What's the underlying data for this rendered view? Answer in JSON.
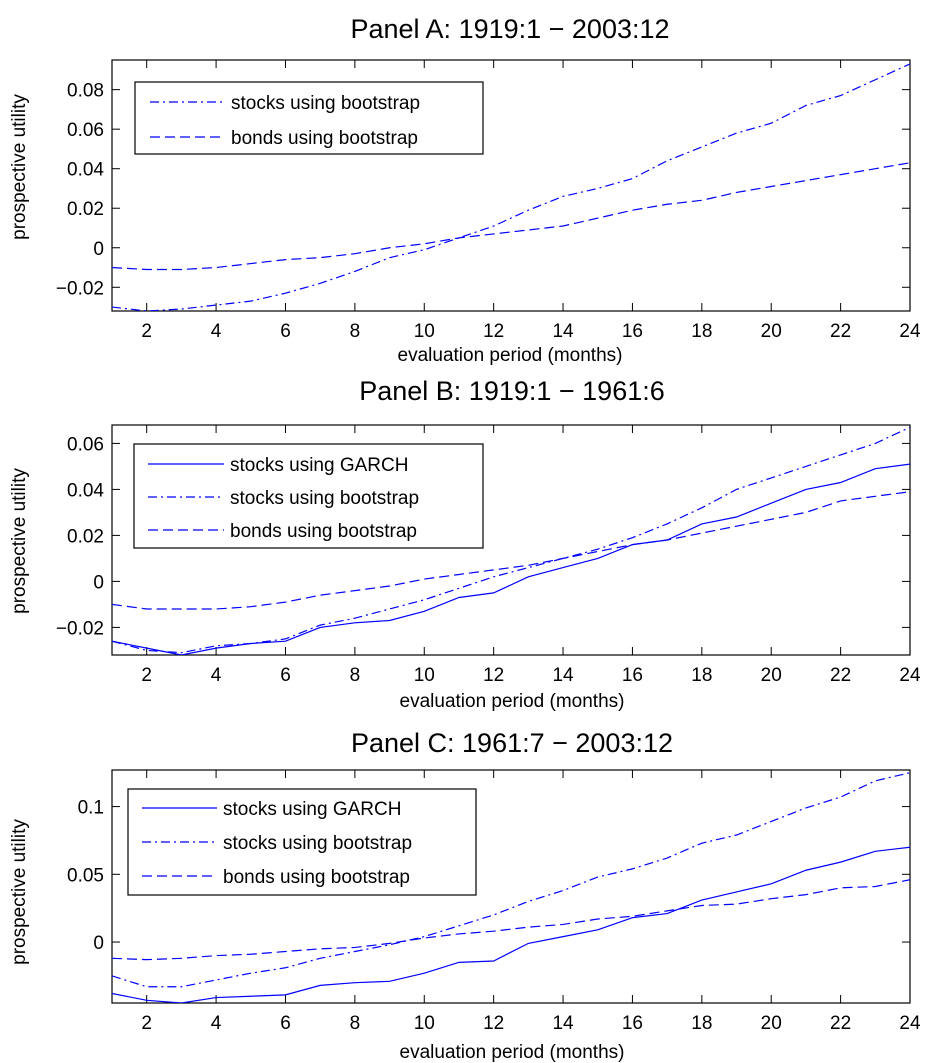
{
  "chart_data": [
    {
      "type": "line",
      "title": "Panel A: 1919:1 − 2003:12",
      "xlabel": "evaluation period (months)",
      "ylabel": "prospective utility",
      "xlim": [
        1,
        24
      ],
      "ylim": [
        -0.032,
        0.095
      ],
      "xticks": [
        2,
        4,
        6,
        8,
        10,
        12,
        14,
        16,
        18,
        20,
        22,
        24
      ],
      "yticks": [
        -0.02,
        0,
        0.02,
        0.04,
        0.06,
        0.08
      ],
      "ytick_labels": [
        "−0.02",
        "0",
        "0.02",
        "0.04",
        "0.06",
        "0.08"
      ],
      "grid": false,
      "legend_position": "top-left",
      "x": [
        1,
        2,
        3,
        4,
        5,
        6,
        7,
        8,
        9,
        10,
        11,
        12,
        13,
        14,
        15,
        16,
        17,
        18,
        19,
        20,
        21,
        22,
        23,
        24
      ],
      "series": [
        {
          "name": "stocks using bootstrap",
          "style": "dashdot",
          "color": "#0000ff",
          "values": [
            -0.03,
            -0.032,
            -0.031,
            -0.029,
            -0.027,
            -0.023,
            -0.018,
            -0.012,
            -0.005,
            -0.001,
            0.005,
            0.011,
            0.019,
            0.026,
            0.03,
            0.035,
            0.044,
            0.051,
            0.058,
            0.063,
            0.072,
            0.077,
            0.085,
            0.093
          ]
        },
        {
          "name": "bonds using bootstrap",
          "style": "dashed",
          "color": "#0000ff",
          "values": [
            -0.01,
            -0.011,
            -0.011,
            -0.01,
            -0.008,
            -0.006,
            -0.005,
            -0.003,
            0.0,
            0.002,
            0.005,
            0.007,
            0.009,
            0.011,
            0.015,
            0.019,
            0.022,
            0.024,
            0.028,
            0.031,
            0.034,
            0.037,
            0.04,
            0.043
          ]
        }
      ]
    },
    {
      "type": "line",
      "title": "Panel B: 1919:1 − 1961:6",
      "xlabel": "evaluation period (months)",
      "ylabel": "prospective utility",
      "xlim": [
        1,
        24
      ],
      "ylim": [
        -0.032,
        0.068
      ],
      "xticks": [
        2,
        4,
        6,
        8,
        10,
        12,
        14,
        16,
        18,
        20,
        22,
        24
      ],
      "yticks": [
        -0.02,
        0,
        0.02,
        0.04,
        0.06
      ],
      "ytick_labels": [
        "−0.02",
        "0",
        "0.02",
        "0.04",
        "0.06"
      ],
      "grid": false,
      "legend_position": "top-left",
      "x": [
        1,
        2,
        3,
        4,
        5,
        6,
        7,
        8,
        9,
        10,
        11,
        12,
        13,
        14,
        15,
        16,
        17,
        18,
        19,
        20,
        21,
        22,
        23,
        24
      ],
      "series": [
        {
          "name": "stocks using GARCH",
          "style": "solid",
          "color": "#0000ff",
          "values": [
            -0.026,
            -0.029,
            -0.032,
            -0.029,
            -0.027,
            -0.026,
            -0.02,
            -0.018,
            -0.017,
            -0.013,
            -0.007,
            -0.005,
            0.002,
            0.006,
            0.01,
            0.016,
            0.018,
            0.025,
            0.028,
            0.034,
            0.04,
            0.043,
            0.049,
            0.051
          ]
        },
        {
          "name": "stocks using bootstrap",
          "style": "dashdot",
          "color": "#0000ff",
          "values": [
            -0.026,
            -0.03,
            -0.031,
            -0.028,
            -0.027,
            -0.025,
            -0.019,
            -0.016,
            -0.012,
            -0.008,
            -0.003,
            0.002,
            0.006,
            0.01,
            0.014,
            0.019,
            0.025,
            0.032,
            0.04,
            0.045,
            0.05,
            0.055,
            0.06,
            0.067
          ]
        },
        {
          "name": "bonds using bootstrap",
          "style": "dashed",
          "color": "#0000ff",
          "values": [
            -0.01,
            -0.012,
            -0.012,
            -0.012,
            -0.011,
            -0.009,
            -0.006,
            -0.004,
            -0.002,
            0.001,
            0.003,
            0.005,
            0.007,
            0.01,
            0.013,
            0.016,
            0.018,
            0.021,
            0.024,
            0.027,
            0.03,
            0.035,
            0.037,
            0.039
          ]
        }
      ]
    },
    {
      "type": "line",
      "title": "Panel C: 1961:7 − 2003:12",
      "xlabel": "evaluation period (months)",
      "ylabel": "prospective utility",
      "xlim": [
        1,
        24
      ],
      "ylim": [
        -0.045,
        0.127
      ],
      "xticks": [
        2,
        4,
        6,
        8,
        10,
        12,
        14,
        16,
        18,
        20,
        22,
        24
      ],
      "yticks": [
        0,
        0.05,
        0.1
      ],
      "ytick_labels": [
        "0",
        "0.05",
        "0.1"
      ],
      "grid": false,
      "legend_position": "top-left",
      "x": [
        1,
        2,
        3,
        4,
        5,
        6,
        7,
        8,
        9,
        10,
        11,
        12,
        13,
        14,
        15,
        16,
        17,
        18,
        19,
        20,
        21,
        22,
        23,
        24
      ],
      "series": [
        {
          "name": "stocks using GARCH",
          "style": "solid",
          "color": "#0000ff",
          "values": [
            -0.038,
            -0.043,
            -0.045,
            -0.041,
            -0.04,
            -0.039,
            -0.032,
            -0.03,
            -0.029,
            -0.023,
            -0.015,
            -0.014,
            -0.001,
            0.004,
            0.009,
            0.018,
            0.021,
            0.031,
            0.037,
            0.043,
            0.053,
            0.059,
            0.067,
            0.07
          ]
        },
        {
          "name": "stocks using bootstrap",
          "style": "dashdot",
          "color": "#0000ff",
          "values": [
            -0.025,
            -0.033,
            -0.033,
            -0.028,
            -0.023,
            -0.019,
            -0.012,
            -0.007,
            -0.002,
            0.004,
            0.012,
            0.02,
            0.03,
            0.038,
            0.048,
            0.054,
            0.062,
            0.073,
            0.079,
            0.089,
            0.099,
            0.107,
            0.119,
            0.125
          ]
        },
        {
          "name": "bonds using bootstrap",
          "style": "dashed",
          "color": "#0000ff",
          "values": [
            -0.012,
            -0.013,
            -0.012,
            -0.01,
            -0.009,
            -0.007,
            -0.005,
            -0.004,
            -0.001,
            0.003,
            0.006,
            0.008,
            0.011,
            0.013,
            0.017,
            0.019,
            0.023,
            0.027,
            0.028,
            0.032,
            0.035,
            0.04,
            0.041,
            0.046
          ]
        }
      ]
    }
  ]
}
